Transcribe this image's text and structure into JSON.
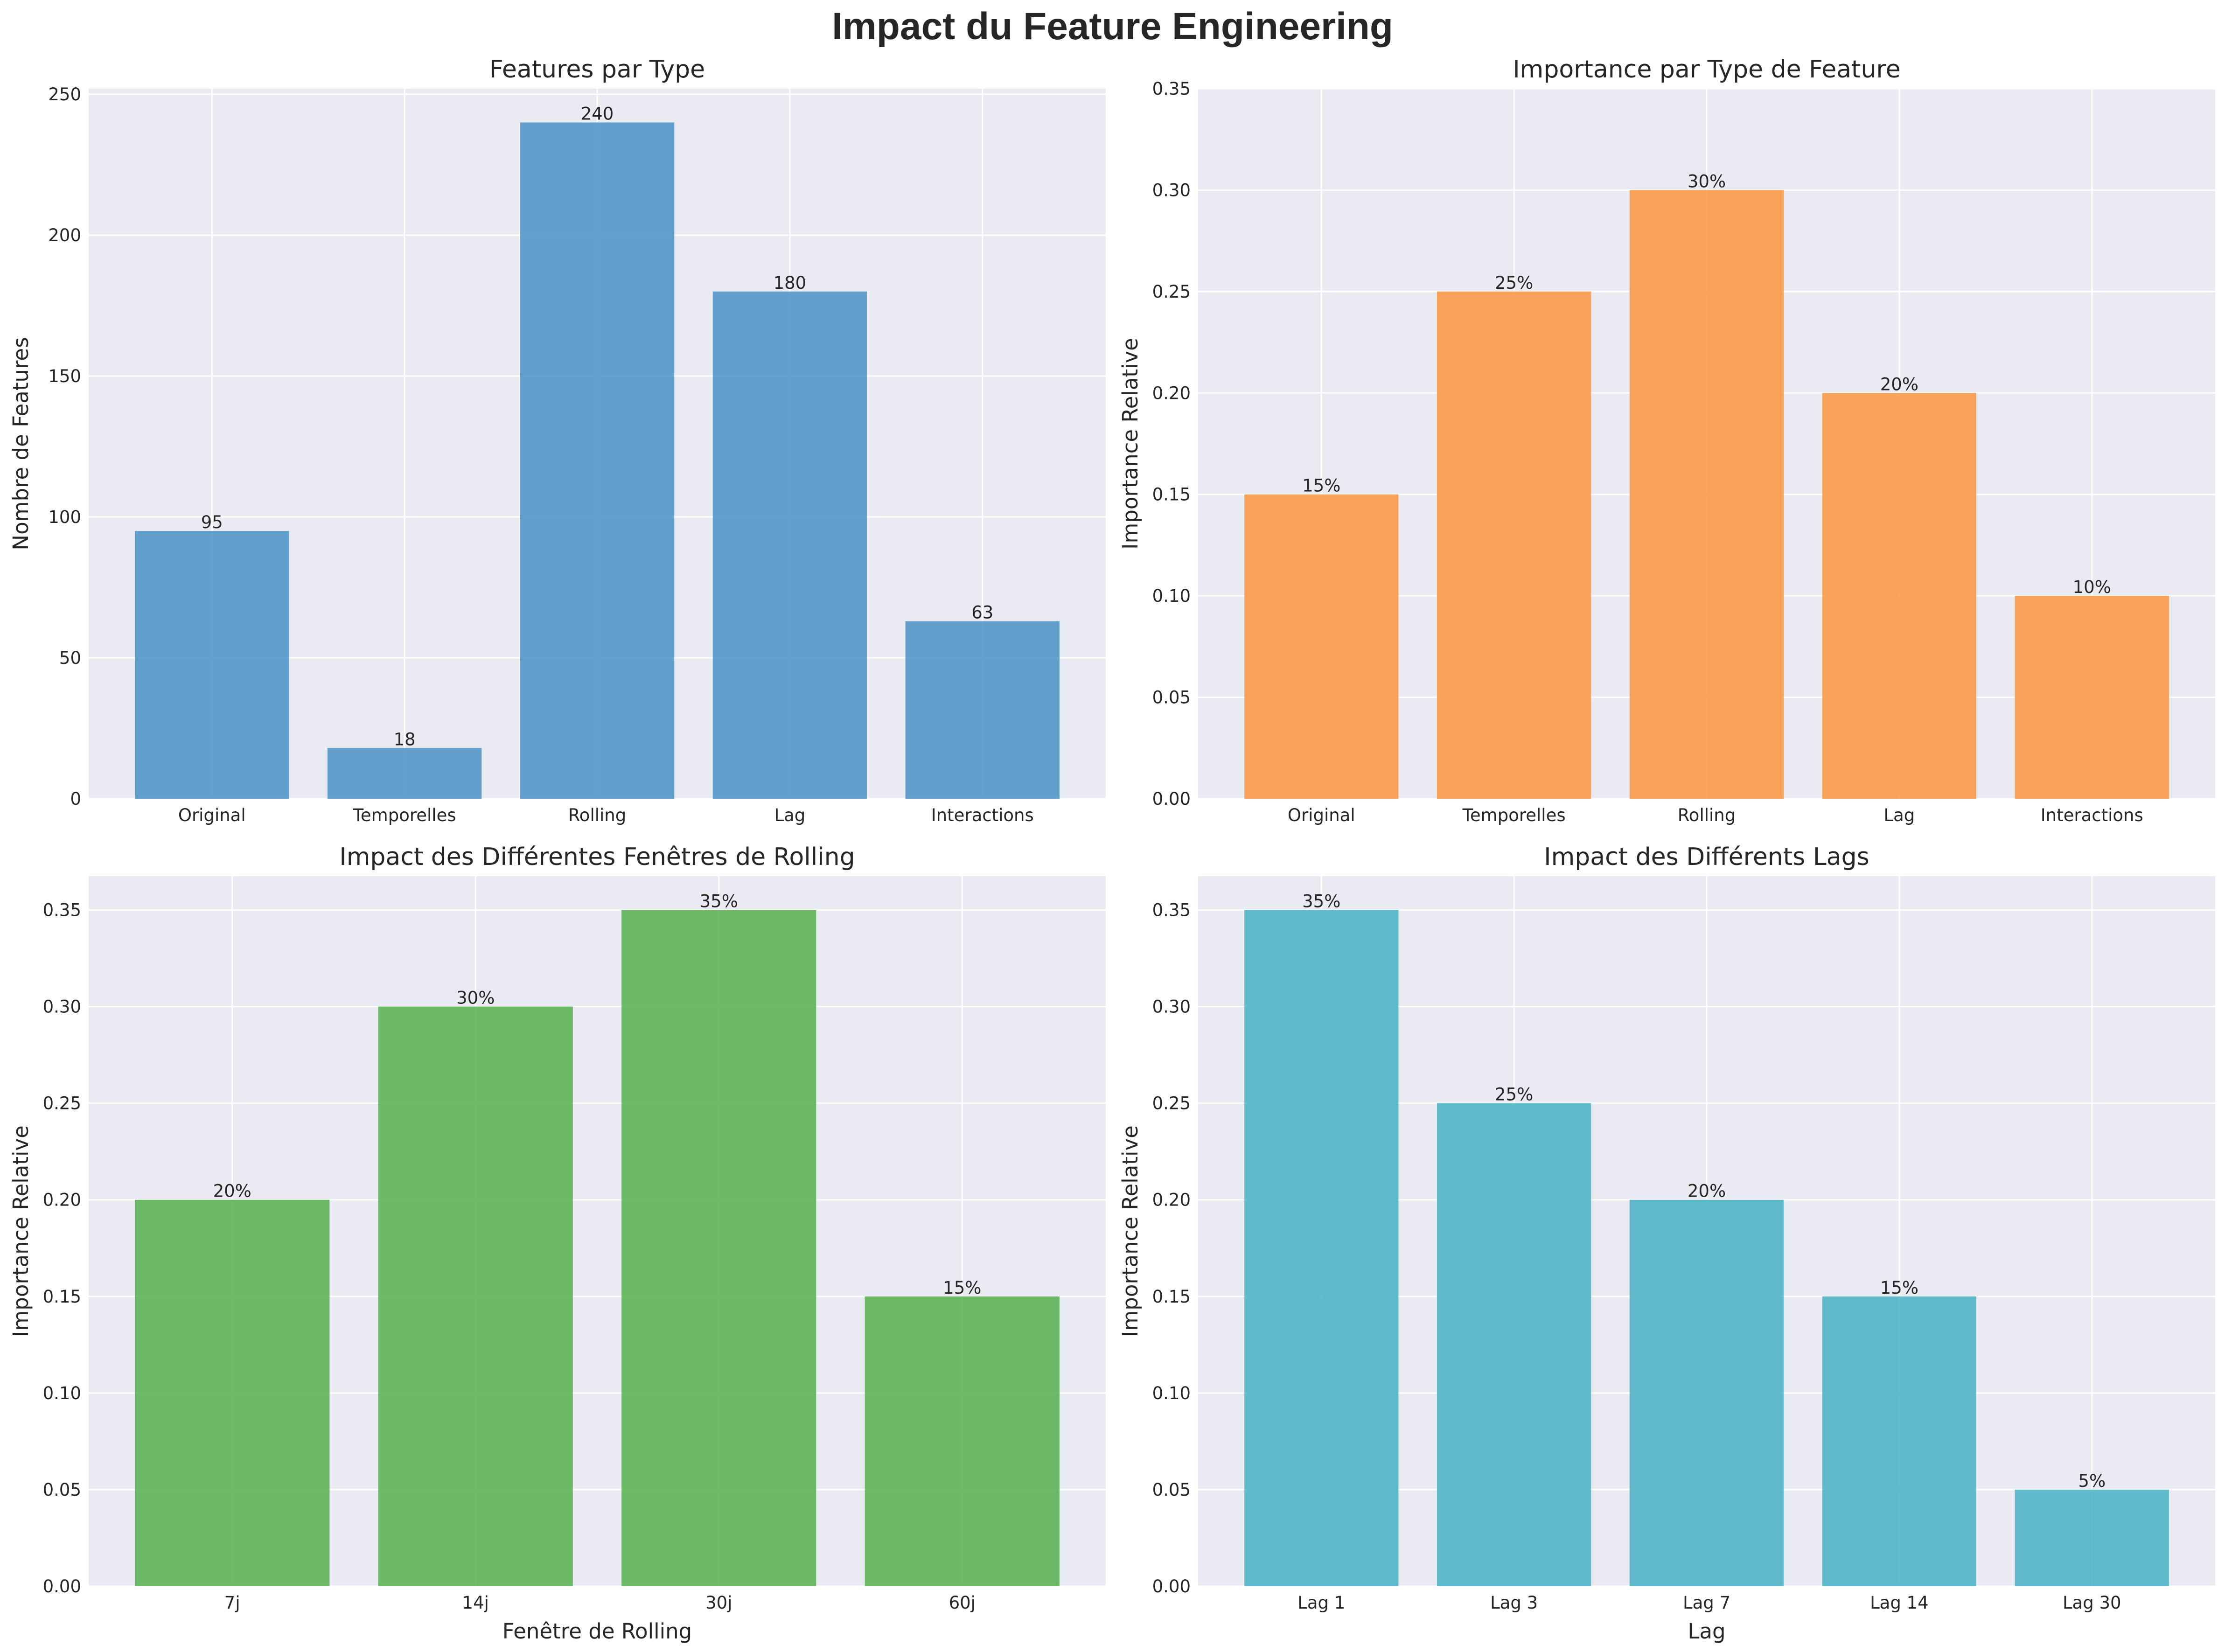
{
  "title": "Impact du Feature Engineering",
  "chart_data": [
    {
      "type": "bar",
      "title": "Features par Type",
      "xlabel": "",
      "ylabel": "Nombre de Features",
      "categories": [
        "Original",
        "Temporelles",
        "Rolling",
        "Lag",
        "Interactions"
      ],
      "values": [
        95,
        18,
        240,
        180,
        63
      ],
      "data_labels": [
        "95",
        "18",
        "240",
        "180",
        "63"
      ],
      "ylim": [
        0,
        252
      ],
      "yticks": [
        0,
        50,
        100,
        150,
        200,
        250
      ],
      "ytick_labels": [
        "0",
        "50",
        "100",
        "150",
        "200",
        "250"
      ],
      "color": "#4a90c4",
      "grid": true
    },
    {
      "type": "bar",
      "title": "Importance par Type de Feature",
      "xlabel": "",
      "ylabel": "Importance Relative",
      "categories": [
        "Original",
        "Temporelles",
        "Rolling",
        "Lag",
        "Interactions"
      ],
      "values": [
        0.15,
        0.25,
        0.3,
        0.2,
        0.1
      ],
      "data_labels": [
        "15%",
        "25%",
        "30%",
        "20%",
        "10%"
      ],
      "ylim": [
        0,
        0.35
      ],
      "yticks": [
        0,
        0.05,
        0.1,
        0.15,
        0.2,
        0.25,
        0.3,
        0.35
      ],
      "ytick_labels": [
        "0.00",
        "0.05",
        "0.10",
        "0.15",
        "0.20",
        "0.25",
        "0.30",
        "0.35"
      ],
      "color": "#fa9540",
      "grid": true
    },
    {
      "type": "bar",
      "title": "Impact des Différentes Fenêtres de Rolling",
      "xlabel": "Fenêtre de Rolling",
      "ylabel": "Importance Relative",
      "categories": [
        "7j",
        "14j",
        "30j",
        "60j"
      ],
      "values": [
        0.2,
        0.3,
        0.35,
        0.15
      ],
      "data_labels": [
        "20%",
        "30%",
        "35%",
        "15%"
      ],
      "ylim": [
        0,
        0.3675
      ],
      "yticks": [
        0,
        0.05,
        0.1,
        0.15,
        0.2,
        0.25,
        0.3,
        0.35
      ],
      "ytick_labels": [
        "0.00",
        "0.05",
        "0.10",
        "0.15",
        "0.20",
        "0.25",
        "0.30",
        "0.35"
      ],
      "color": "#55b04f",
      "grid": true
    },
    {
      "type": "bar",
      "title": "Impact des Différents Lags",
      "xlabel": "Lag",
      "ylabel": "Importance Relative",
      "categories": [
        "Lag 1",
        "Lag 3",
        "Lag 7",
        "Lag 14",
        "Lag 30"
      ],
      "values": [
        0.35,
        0.25,
        0.2,
        0.15,
        0.05
      ],
      "data_labels": [
        "35%",
        "25%",
        "20%",
        "15%",
        "5%"
      ],
      "ylim": [
        0,
        0.3675
      ],
      "yticks": [
        0,
        0.05,
        0.1,
        0.15,
        0.2,
        0.25,
        0.3,
        0.35
      ],
      "ytick_labels": [
        "0.00",
        "0.05",
        "0.10",
        "0.15",
        "0.20",
        "0.25",
        "0.30",
        "0.35"
      ],
      "color": "#46b0c3",
      "grid": true
    }
  ]
}
